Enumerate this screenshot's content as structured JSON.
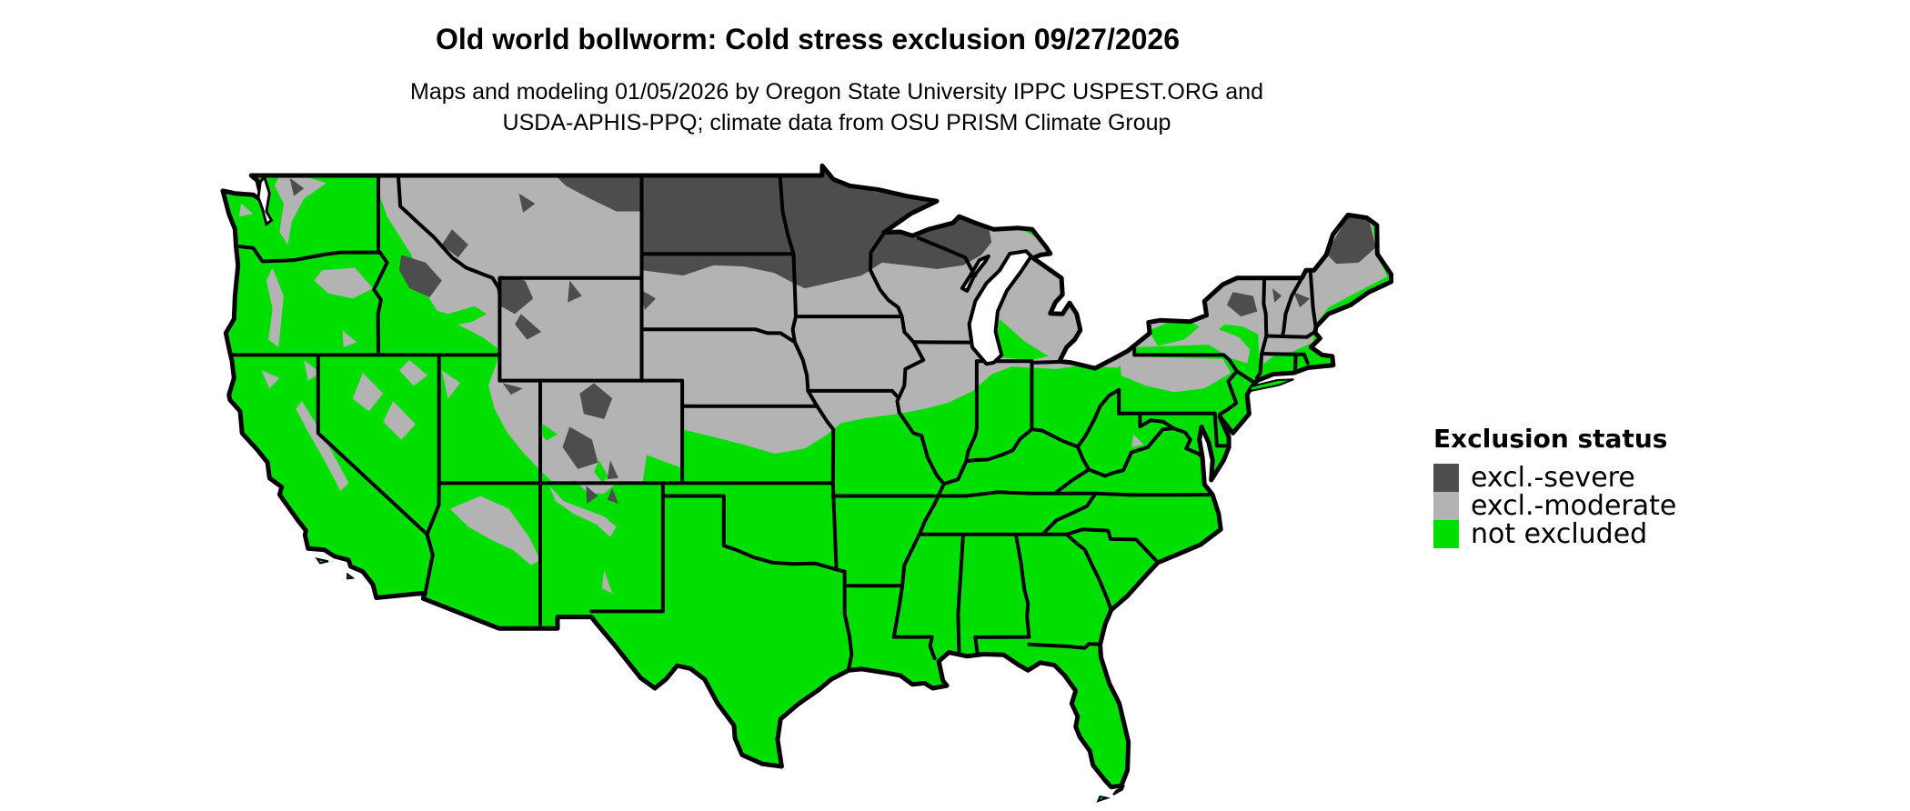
{
  "title": "Old world bollworm: Cold stress exclusion 09/27/2026",
  "subtitle_line1": "Maps and modeling 01/05/2026 by Oregon State University IPPC USPEST.ORG and",
  "subtitle_line2": "USDA-APHIS-PPQ; climate data from OSU PRISM Climate Group",
  "legend": {
    "title": "Exclusion status",
    "items": [
      {
        "key": "severe",
        "label": "excl.-severe",
        "color": "#4D4D4D"
      },
      {
        "key": "moderate",
        "label": "excl.-moderate",
        "color": "#B3B3B3"
      },
      {
        "key": "not_excluded",
        "label": "not excluded",
        "color": "#00DF00"
      }
    ]
  },
  "map": {
    "kind": "contiguous-united-states-choropleth",
    "colors": {
      "severe": "#4D4D4D",
      "moderate": "#B3B3B3",
      "not_excluded": "#00DF00",
      "water_background": "#FFFFFF",
      "boundary": "#000000"
    }
  }
}
